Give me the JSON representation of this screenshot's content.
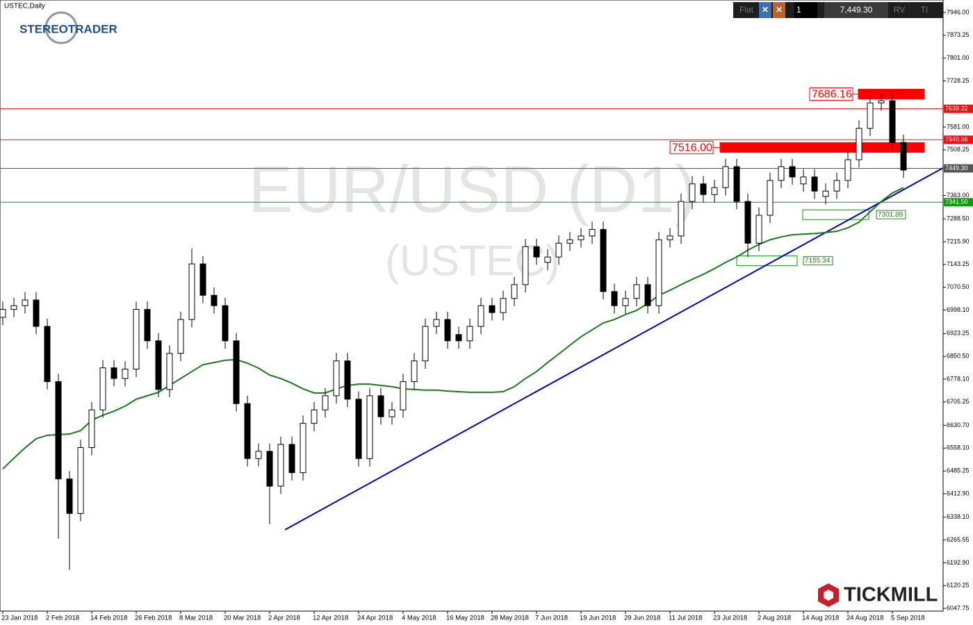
{
  "chart_data": {
    "type": "candlestick",
    "title": "USTEC,Daily",
    "watermark": "EUR/USD (D1)",
    "watermark_sub": "(USTEC)",
    "categories": [
      "23 Jan 2018",
      null,
      null,
      null,
      "2 Feb 2018",
      null,
      null,
      null,
      "14 Feb 2018",
      null,
      null,
      null,
      "26 Feb 2018",
      null,
      null,
      null,
      "8 Mar 2018",
      null,
      null,
      null,
      "20 Mar 2018",
      null,
      null,
      null,
      "2 Apr 2018",
      null,
      null,
      null,
      "12 Apr 2018",
      null,
      null,
      null,
      "24 Apr 2018",
      null,
      null,
      null,
      "4 May 2018",
      null,
      null,
      null,
      "16 May 2018",
      null,
      null,
      null,
      "28 May 2018",
      null,
      null,
      null,
      "7 Jun 2018",
      null,
      null,
      null,
      "19 Jun 2018",
      null,
      null,
      null,
      "29 Jun 2018",
      null,
      null,
      null,
      "11 Jul 2018",
      null,
      null,
      null,
      "23 Jul 2018",
      null,
      null,
      null,
      "2 Aug 2018",
      null,
      null,
      null,
      "14 Aug 2018",
      null,
      null,
      null,
      "24 Aug 2018",
      null,
      null,
      null,
      "5 Sep 2018",
      null
    ],
    "open": [
      6975,
      7000,
      7012,
      7030,
      6946,
      6770,
      6460,
      6350,
      6560,
      6680,
      6814,
      6780,
      6810,
      7000,
      6900,
      6745,
      6860,
      6968,
      7145,
      7045,
      7012,
      6900,
      6700,
      6525,
      6548,
      6437,
      6570,
      6480,
      6637,
      6680,
      6725,
      6836,
      6714,
      6525,
      6725,
      6658,
      6680,
      6770,
      6836,
      6946,
      6968,
      6920,
      6900,
      6946,
      7012,
      6990,
      7035,
      7079,
      7200,
      7150,
      7167,
      7211,
      7222,
      7234,
      7255,
      7057,
      7012,
      7035,
      7079,
      7012,
      7222,
      7234,
      7344,
      7400,
      7366,
      7388,
      7455,
      7344,
      7211,
      7300,
      7411,
      7455,
      7400,
      7422,
      7360,
      7377,
      7411,
      7477,
      7577,
      7658,
      7665,
      7532
    ],
    "high": [
      7025,
      7037,
      7055,
      7055,
      6971,
      6795,
      6485,
      6585,
      6705,
      6839,
      6839,
      6835,
      7025,
      7025,
      6925,
      6885,
      6993,
      7194,
      7170,
      7070,
      7037,
      6925,
      6725,
      6573,
      6573,
      6595,
      6595,
      6662,
      6705,
      6750,
      6861,
      6861,
      6739,
      6750,
      6750,
      6705,
      6795,
      6861,
      6971,
      6993,
      6993,
      6945,
      6971,
      7037,
      7037,
      7060,
      7104,
      7225,
      7225,
      7192,
      7236,
      7247,
      7259,
      7280,
      7280,
      7082,
      7060,
      7104,
      7104,
      7247,
      7259,
      7369,
      7425,
      7425,
      7413,
      7480,
      7480,
      7369,
      7325,
      7436,
      7480,
      7480,
      7447,
      7447,
      7402,
      7436,
      7502,
      7602,
      7683,
      7687,
      7690,
      7557
    ],
    "low": [
      6950,
      6975,
      6987,
      6921,
      6745,
      6270,
      6170,
      6325,
      6535,
      6655,
      6755,
      6755,
      6785,
      6875,
      6720,
      6720,
      6835,
      6943,
      7020,
      6987,
      6875,
      6675,
      6500,
      6500,
      6316,
      6412,
      6455,
      6455,
      6612,
      6655,
      6700,
      6689,
      6500,
      6500,
      6633,
      6633,
      6655,
      6745,
      6811,
      6921,
      6875,
      6875,
      6875,
      6921,
      6965,
      6965,
      7010,
      7054,
      7142,
      7125,
      7142,
      7186,
      7197,
      7209,
      7032,
      6987,
      6987,
      7010,
      6987,
      6987,
      7197,
      7209,
      7319,
      7341,
      7341,
      7363,
      7319,
      7167,
      7186,
      7275,
      7386,
      7397,
      7375,
      7352,
      7335,
      7352,
      7386,
      7452,
      7552,
      7633,
      7507,
      7419
    ],
    "close": [
      7000,
      7012,
      7030,
      6946,
      6770,
      6460,
      6350,
      6560,
      6680,
      6814,
      6780,
      6810,
      7000,
      6900,
      6745,
      6860,
      6968,
      7145,
      7045,
      7012,
      6900,
      6700,
      6525,
      6548,
      6437,
      6570,
      6480,
      6637,
      6680,
      6725,
      6836,
      6714,
      6525,
      6725,
      6658,
      6680,
      6770,
      6836,
      6946,
      6968,
      6900,
      6900,
      6946,
      7012,
      6990,
      7035,
      7079,
      7200,
      7167,
      7167,
      7211,
      7222,
      7234,
      7255,
      7057,
      7012,
      7035,
      7079,
      7012,
      7222,
      7234,
      7344,
      7400,
      7366,
      7388,
      7455,
      7344,
      7211,
      7300,
      7411,
      7455,
      7422,
      7422,
      7377,
      7377,
      7411,
      7477,
      7577,
      7658,
      7665,
      7532,
      7444
    ],
    "ma": {
      "color": "#1a7a1a",
      "values": [
        6492,
        6526,
        6559,
        6588,
        6599,
        6601,
        6603,
        6614,
        6647,
        6663,
        6676,
        6692,
        6714,
        6725,
        6736,
        6758,
        6780,
        6802,
        6824,
        6831,
        6838,
        6840,
        6829,
        6813,
        6791,
        6780,
        6765,
        6747,
        6734,
        6734,
        6747,
        6758,
        6762,
        6762,
        6758,
        6754,
        6747,
        6745,
        6743,
        6743,
        6740,
        6738,
        6736,
        6736,
        6736,
        6738,
        6754,
        6780,
        6802,
        6831,
        6858,
        6886,
        6913,
        6935,
        6957,
        6968,
        6984,
        6997,
        7019,
        7045,
        7061,
        7079,
        7096,
        7112,
        7130,
        7150,
        7167,
        7189,
        7207,
        7222,
        7231,
        7238,
        7240,
        7242,
        7245,
        7249,
        7260,
        7278,
        7311,
        7344,
        7371,
        7388
      ]
    },
    "trendline": {
      "color": "#0000cc",
      "values": [
        6298,
        7451
      ]
    },
    "hlines": [
      {
        "value": {
          "value": 7639.22,
          "label": "7639.22"
        },
        "color": "#ee1111"
      },
      {
        "value": {
          "value": 7540.66,
          "label": "7540.66"
        },
        "color": "#ee1111"
      },
      {
        "value": {
          "value": 7449.3,
          "label": "7449.30"
        },
        "color": "#555555"
      },
      {
        "value": {
          "value": 7341.5,
          "label": "7341.50"
        },
        "color": "#119911"
      }
    ],
    "zones": [
      {
        "value": {
          "value": 7686.16,
          "label": "7686.16"
        },
        "color": "#ff0000",
        "style": "filled"
      },
      {
        "value": {
          "value": 7516,
          "label": "7516.00"
        },
        "color": "#ff0000",
        "style": "filled"
      },
      {
        "value": {
          "value": 7301.89,
          "label": "7301.89"
        },
        "color": "#119911",
        "style": "outline"
      },
      {
        "value": {
          "value": 7155.34,
          "label": "7155.34"
        },
        "color": "#119911",
        "style": "outline"
      }
    ],
    "ylim": [
      6038.9,
      7985.8
    ],
    "yticks": [
      {
        "value": 7946,
        "label": "7946.00"
      },
      {
        "value": 7873.25,
        "label": "7873.25"
      },
      {
        "value": 7801,
        "label": "7801.00"
      },
      {
        "value": 7728.25,
        "label": "7728.25"
      },
      {
        "value": 7581,
        "label": "7581.00"
      },
      {
        "value": 7508.25,
        "label": "7508.25"
      },
      {
        "value": 7363,
        "label": "7363.00"
      },
      {
        "value": 7288.5,
        "label": "7288.50"
      },
      {
        "value": 7215.9,
        "label": "7215.90"
      },
      {
        "value": 7143.25,
        "label": "7143.25"
      },
      {
        "value": 7070.5,
        "label": "7070.50"
      },
      {
        "value": 6998.1,
        "label": "6998.10"
      },
      {
        "value": 6923.25,
        "label": "6923.25"
      },
      {
        "value": 6850.5,
        "label": "6850.50"
      },
      {
        "value": 6778.1,
        "label": "6778.10"
      },
      {
        "value": 6705.25,
        "label": "6705.25"
      },
      {
        "value": 6630.7,
        "label": "6630.70"
      },
      {
        "value": 6558.1,
        "label": "6558.10"
      },
      {
        "value": 6485.25,
        "label": "6485.25"
      },
      {
        "value": 6412.9,
        "label": "6412.90"
      },
      {
        "value": 6338.1,
        "label": "6338.10"
      },
      {
        "value": 6265.55,
        "label": "6265.55"
      },
      {
        "value": 6192.9,
        "label": "6192.90"
      },
      {
        "value": 6120.25,
        "label": "6120.25"
      },
      {
        "value": 6047.75,
        "label": "6047.75"
      }
    ]
  },
  "ui": {
    "toolbar": {
      "mode": "Flat",
      "lots": "1",
      "price": "7,449.30",
      "rv": "RV",
      "ti": "TI"
    },
    "logo_left": "STEREOTRADER",
    "logo_right": "TICKMILL"
  }
}
